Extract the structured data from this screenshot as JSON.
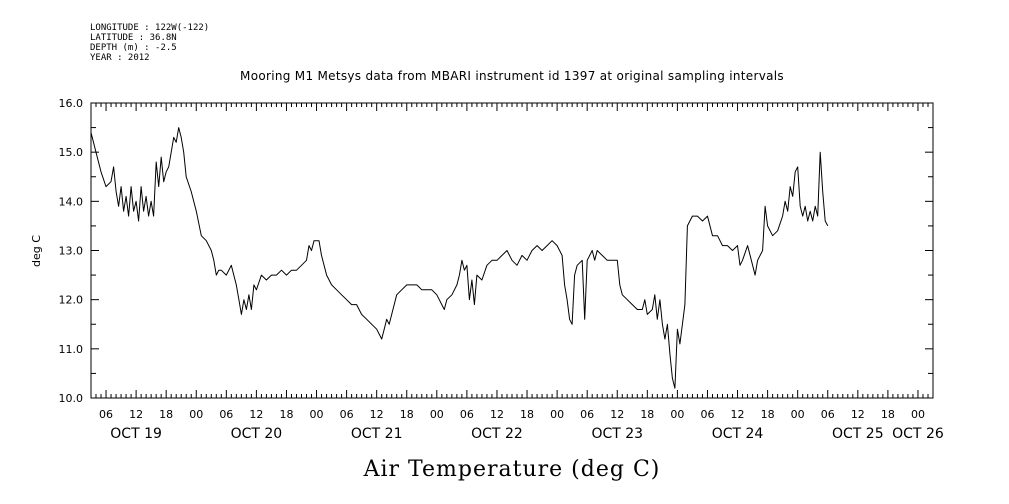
{
  "header": {
    "meta_lines": [
      "LONGITUDE : 122W(-122)",
      "LATITUDE : 36.8N",
      "DEPTH (m) : -2.5",
      "YEAR : 2012"
    ]
  },
  "footer": {
    "label": "Air Temperature (deg C)"
  },
  "chart_data": {
    "type": "line",
    "title": "Mooring M1 Metsys data from MBARI instrument id 1397 at original sampling intervals",
    "xlabel": "",
    "ylabel": "deg C",
    "ylim": [
      10.0,
      16.0
    ],
    "yticks": [
      "10.0",
      "11.0",
      "12.0",
      "13.0",
      "14.0",
      "15.0",
      "16.0"
    ],
    "x_units": "hours from Oct 19 00:00 (2012)",
    "xlim": [
      3,
      171
    ],
    "hour_tick_labels": [
      {
        "x": 6,
        "label": "06"
      },
      {
        "x": 12,
        "label": "12"
      },
      {
        "x": 18,
        "label": "18"
      },
      {
        "x": 24,
        "label": "00"
      },
      {
        "x": 30,
        "label": "06"
      },
      {
        "x": 36,
        "label": "12"
      },
      {
        "x": 42,
        "label": "18"
      },
      {
        "x": 48,
        "label": "00"
      },
      {
        "x": 54,
        "label": "06"
      },
      {
        "x": 60,
        "label": "12"
      },
      {
        "x": 66,
        "label": "18"
      },
      {
        "x": 72,
        "label": "00"
      },
      {
        "x": 78,
        "label": "06"
      },
      {
        "x": 84,
        "label": "12"
      },
      {
        "x": 90,
        "label": "18"
      },
      {
        "x": 96,
        "label": "00"
      },
      {
        "x": 102,
        "label": "06"
      },
      {
        "x": 108,
        "label": "12"
      },
      {
        "x": 114,
        "label": "18"
      },
      {
        "x": 120,
        "label": "00"
      },
      {
        "x": 126,
        "label": "06"
      },
      {
        "x": 132,
        "label": "12"
      },
      {
        "x": 138,
        "label": "18"
      },
      {
        "x": 144,
        "label": "00"
      },
      {
        "x": 150,
        "label": "06"
      },
      {
        "x": 156,
        "label": "12"
      },
      {
        "x": 162,
        "label": "18"
      },
      {
        "x": 168,
        "label": "00"
      }
    ],
    "day_labels": [
      {
        "x": 12,
        "label": "OCT 19"
      },
      {
        "x": 36,
        "label": "OCT 20"
      },
      {
        "x": 60,
        "label": "OCT 21"
      },
      {
        "x": 84,
        "label": "OCT 22"
      },
      {
        "x": 108,
        "label": "OCT 23"
      },
      {
        "x": 132,
        "label": "OCT 24"
      },
      {
        "x": 156,
        "label": "OCT 25"
      },
      {
        "x": 168,
        "label": "OCT 26"
      }
    ],
    "series": [
      {
        "values": [
          [
            3,
            15.4
          ],
          [
            4,
            15.0
          ],
          [
            5,
            14.6
          ],
          [
            6,
            14.3
          ],
          [
            7,
            14.4
          ],
          [
            7.5,
            14.7
          ],
          [
            8,
            14.2
          ],
          [
            8.5,
            13.9
          ],
          [
            9,
            14.3
          ],
          [
            9.5,
            13.8
          ],
          [
            10,
            14.1
          ],
          [
            10.5,
            13.7
          ],
          [
            11,
            14.3
          ],
          [
            11.5,
            13.8
          ],
          [
            12,
            14.0
          ],
          [
            12.5,
            13.6
          ],
          [
            13,
            14.3
          ],
          [
            13.5,
            13.8
          ],
          [
            14,
            14.1
          ],
          [
            14.5,
            13.7
          ],
          [
            15,
            14.0
          ],
          [
            15.5,
            13.7
          ],
          [
            16,
            14.8
          ],
          [
            16.5,
            14.3
          ],
          [
            17,
            14.9
          ],
          [
            17.5,
            14.4
          ],
          [
            18,
            14.6
          ],
          [
            18.5,
            14.7
          ],
          [
            19,
            15.0
          ],
          [
            19.5,
            15.3
          ],
          [
            20,
            15.2
          ],
          [
            20.5,
            15.5
          ],
          [
            21,
            15.3
          ],
          [
            21.5,
            15.0
          ],
          [
            22,
            14.5
          ],
          [
            23,
            14.2
          ],
          [
            24,
            13.8
          ],
          [
            25,
            13.3
          ],
          [
            26,
            13.2
          ],
          [
            27,
            13.0
          ],
          [
            27.5,
            12.8
          ],
          [
            28,
            12.5
          ],
          [
            28.5,
            12.6
          ],
          [
            29,
            12.6
          ],
          [
            30,
            12.5
          ],
          [
            31,
            12.7
          ],
          [
            31.5,
            12.5
          ],
          [
            32,
            12.3
          ],
          [
            32.5,
            12.0
          ],
          [
            33,
            11.7
          ],
          [
            33.5,
            12.0
          ],
          [
            34,
            11.8
          ],
          [
            34.5,
            12.1
          ],
          [
            35,
            11.8
          ],
          [
            35.5,
            12.3
          ],
          [
            36,
            12.2
          ],
          [
            37,
            12.5
          ],
          [
            38,
            12.4
          ],
          [
            39,
            12.5
          ],
          [
            40,
            12.5
          ],
          [
            41,
            12.6
          ],
          [
            42,
            12.5
          ],
          [
            43,
            12.6
          ],
          [
            44,
            12.6
          ],
          [
            45,
            12.7
          ],
          [
            46,
            12.8
          ],
          [
            46.5,
            13.1
          ],
          [
            47,
            13.0
          ],
          [
            47.5,
            13.2
          ],
          [
            48,
            13.2
          ],
          [
            48.5,
            13.2
          ],
          [
            49,
            12.9
          ],
          [
            50,
            12.5
          ],
          [
            51,
            12.3
          ],
          [
            52,
            12.2
          ],
          [
            53,
            12.1
          ],
          [
            54,
            12.0
          ],
          [
            55,
            11.9
          ],
          [
            56,
            11.9
          ],
          [
            57,
            11.7
          ],
          [
            58,
            11.6
          ],
          [
            59,
            11.5
          ],
          [
            60,
            11.4
          ],
          [
            60.5,
            11.3
          ],
          [
            61,
            11.2
          ],
          [
            61.5,
            11.4
          ],
          [
            62,
            11.6
          ],
          [
            62.5,
            11.5
          ],
          [
            63,
            11.7
          ],
          [
            63.5,
            11.9
          ],
          [
            64,
            12.1
          ],
          [
            65,
            12.2
          ],
          [
            66,
            12.3
          ],
          [
            67,
            12.3
          ],
          [
            68,
            12.3
          ],
          [
            69,
            12.2
          ],
          [
            70,
            12.2
          ],
          [
            71,
            12.2
          ],
          [
            72,
            12.1
          ],
          [
            73,
            11.9
          ],
          [
            73.5,
            11.8
          ],
          [
            74,
            12.0
          ],
          [
            75,
            12.1
          ],
          [
            76,
            12.3
          ],
          [
            76.5,
            12.5
          ],
          [
            77,
            12.8
          ],
          [
            77.5,
            12.6
          ],
          [
            78,
            12.7
          ],
          [
            78.5,
            12.0
          ],
          [
            79,
            12.4
          ],
          [
            79.5,
            11.9
          ],
          [
            80,
            12.5
          ],
          [
            81,
            12.4
          ],
          [
            82,
            12.7
          ],
          [
            83,
            12.8
          ],
          [
            84,
            12.8
          ],
          [
            85,
            12.9
          ],
          [
            86,
            13.0
          ],
          [
            87,
            12.8
          ],
          [
            88,
            12.7
          ],
          [
            89,
            12.9
          ],
          [
            90,
            12.8
          ],
          [
            91,
            13.0
          ],
          [
            92,
            13.1
          ],
          [
            93,
            13.0
          ],
          [
            94,
            13.1
          ],
          [
            95,
            13.2
          ],
          [
            96,
            13.1
          ],
          [
            97,
            12.9
          ],
          [
            97.5,
            12.3
          ],
          [
            98,
            12.0
          ],
          [
            98.5,
            11.6
          ],
          [
            99,
            11.5
          ],
          [
            99.5,
            12.5
          ],
          [
            100,
            12.7
          ],
          [
            101,
            12.8
          ],
          [
            101.5,
            11.6
          ],
          [
            102,
            12.8
          ],
          [
            103,
            13.0
          ],
          [
            103.5,
            12.8
          ],
          [
            104,
            13.0
          ],
          [
            105,
            12.9
          ],
          [
            106,
            12.8
          ],
          [
            107,
            12.8
          ],
          [
            108,
            12.8
          ],
          [
            108.5,
            12.3
          ],
          [
            109,
            12.1
          ],
          [
            110,
            12.0
          ],
          [
            111,
            11.9
          ],
          [
            112,
            11.8
          ],
          [
            113,
            11.8
          ],
          [
            113.5,
            12.0
          ],
          [
            114,
            11.7
          ],
          [
            115,
            11.8
          ],
          [
            115.5,
            12.1
          ],
          [
            116,
            11.6
          ],
          [
            116.5,
            12.0
          ],
          [
            117,
            11.5
          ],
          [
            117.5,
            11.2
          ],
          [
            118,
            11.5
          ],
          [
            118.5,
            10.9
          ],
          [
            119,
            10.4
          ],
          [
            119.5,
            10.2
          ],
          [
            120,
            11.4
          ],
          [
            120.5,
            11.1
          ],
          [
            121,
            11.5
          ],
          [
            121.5,
            11.9
          ],
          [
            122,
            13.5
          ],
          [
            122.5,
            13.6
          ],
          [
            123,
            13.7
          ],
          [
            124,
            13.7
          ],
          [
            125,
            13.6
          ],
          [
            126,
            13.7
          ],
          [
            127,
            13.3
          ],
          [
            128,
            13.3
          ],
          [
            129,
            13.1
          ],
          [
            130,
            13.1
          ],
          [
            131,
            13.0
          ],
          [
            132,
            13.1
          ],
          [
            132.5,
            12.7
          ],
          [
            133,
            12.8
          ],
          [
            134,
            13.1
          ],
          [
            134.5,
            12.9
          ],
          [
            135,
            12.7
          ],
          [
            135.5,
            12.5
          ],
          [
            136,
            12.8
          ],
          [
            137,
            13.0
          ],
          [
            137.5,
            13.9
          ],
          [
            138,
            13.5
          ],
          [
            139,
            13.3
          ],
          [
            140,
            13.4
          ],
          [
            141,
            13.7
          ],
          [
            141.5,
            14.0
          ],
          [
            142,
            13.8
          ],
          [
            142.5,
            14.3
          ],
          [
            143,
            14.1
          ],
          [
            143.5,
            14.6
          ],
          [
            144,
            14.7
          ],
          [
            144.5,
            13.9
          ],
          [
            145,
            13.7
          ],
          [
            145.5,
            13.9
          ],
          [
            146,
            13.6
          ],
          [
            146.5,
            13.8
          ],
          [
            147,
            13.6
          ],
          [
            147.5,
            13.9
          ],
          [
            148,
            13.7
          ],
          [
            148.5,
            15.0
          ],
          [
            149,
            14.2
          ],
          [
            149.5,
            13.6
          ],
          [
            150,
            13.5
          ]
        ]
      }
    ]
  }
}
